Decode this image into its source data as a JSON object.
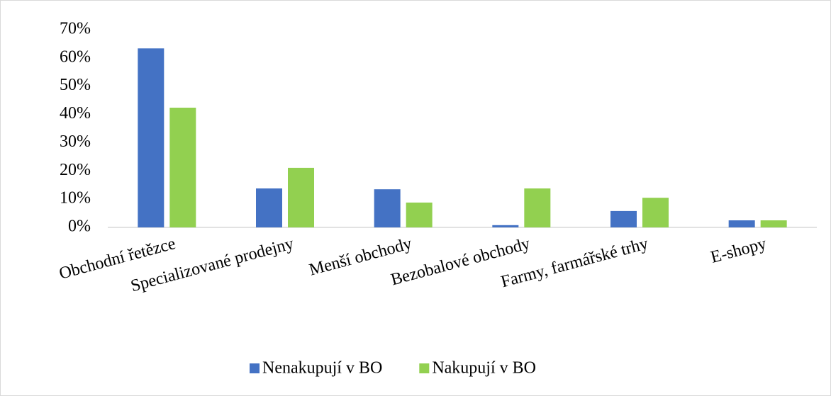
{
  "chart_data": {
    "type": "bar",
    "categories": [
      "Obchodní řetězce",
      "Specializované prodejny",
      "Menší obchody",
      "Bezobalové obchody",
      "Farmy, farmářské trhy",
      "E-shopy"
    ],
    "series": [
      {
        "name": "Nenakupují v BO",
        "color": "#4472c4",
        "values": [
          63.4,
          13.8,
          13.5,
          0.8,
          5.8,
          2.5
        ]
      },
      {
        "name": "Nakupují v BO",
        "color": "#92d050",
        "values": [
          42.4,
          21.1,
          8.8,
          13.8,
          10.5,
          2.5
        ]
      }
    ],
    "ylim": [
      0,
      70
    ],
    "yticks": [
      {
        "value": 0,
        "label": "0%"
      },
      {
        "value": 10,
        "label": "10%"
      },
      {
        "value": 20,
        "label": "20%"
      },
      {
        "value": 30,
        "label": "30%"
      },
      {
        "value": 40,
        "label": "40%"
      },
      {
        "value": 50,
        "label": "50%"
      },
      {
        "value": 60,
        "label": "60%"
      },
      {
        "value": 70,
        "label": "70%"
      }
    ],
    "grid": false,
    "legend": "bottom"
  }
}
